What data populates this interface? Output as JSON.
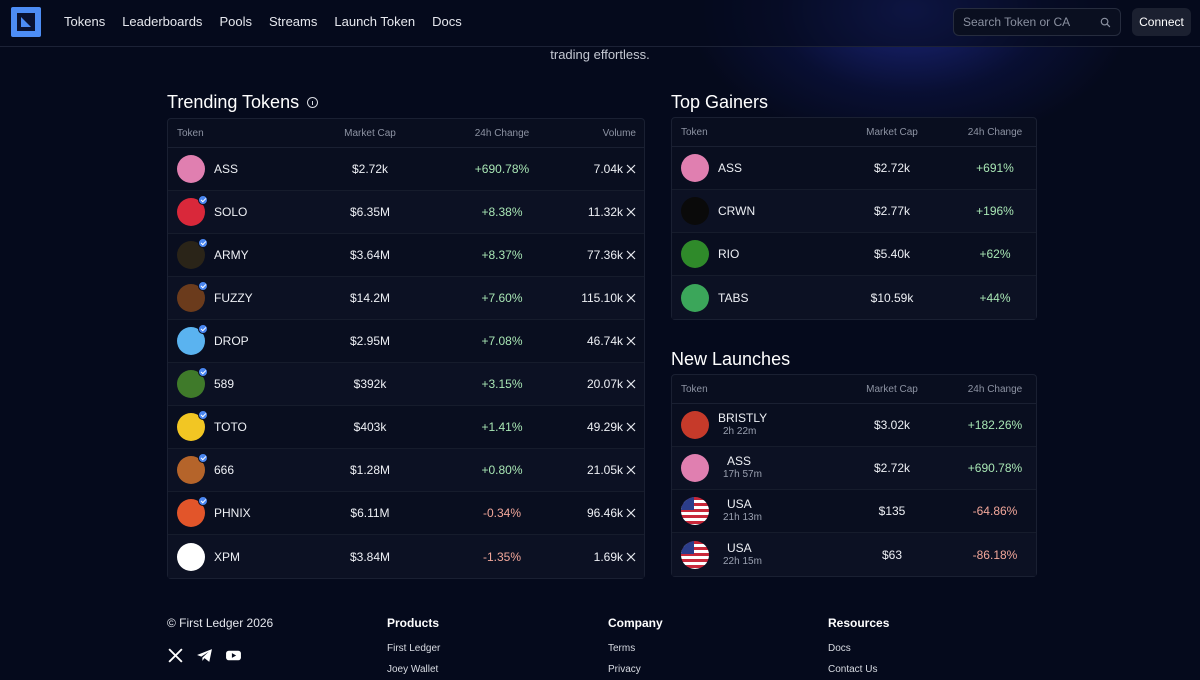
{
  "nav": {
    "links": [
      "Tokens",
      "Leaderboards",
      "Pools",
      "Streams",
      "Launch Token",
      "Docs"
    ],
    "search_placeholder": "Search Token or CA",
    "connect_label": "Connect"
  },
  "hero": {
    "subline": "trading effortless."
  },
  "trending": {
    "title": "Trending Tokens",
    "headers": [
      "Token",
      "Market Cap",
      "24h Change",
      "Volume"
    ],
    "rows": [
      {
        "symbol": "ASS",
        "mcap": "$2.72k",
        "change": "+690.78%",
        "volume": "7.04k",
        "verified": false,
        "color": "#e07fb0"
      },
      {
        "symbol": "SOLO",
        "mcap": "$6.35M",
        "change": "+8.38%",
        "volume": "11.32k",
        "verified": true,
        "color": "#d9283a"
      },
      {
        "symbol": "ARMY",
        "mcap": "$3.64M",
        "change": "+8.37%",
        "volume": "77.36k",
        "verified": true,
        "color": "#2a2418"
      },
      {
        "symbol": "FUZZY",
        "mcap": "$14.2M",
        "change": "+7.60%",
        "volume": "115.10k",
        "verified": true,
        "color": "#6b3b1c"
      },
      {
        "symbol": "DROP",
        "mcap": "$2.95M",
        "change": "+7.08%",
        "volume": "46.74k",
        "verified": true,
        "color": "#5ab3f0"
      },
      {
        "symbol": "589",
        "mcap": "$392k",
        "change": "+3.15%",
        "volume": "20.07k",
        "verified": true,
        "color": "#3f7a2a"
      },
      {
        "symbol": "TOTO",
        "mcap": "$403k",
        "change": "+1.41%",
        "volume": "49.29k",
        "verified": true,
        "color": "#f2c623"
      },
      {
        "symbol": "666",
        "mcap": "$1.28M",
        "change": "+0.80%",
        "volume": "21.05k",
        "verified": true,
        "color": "#b5642a"
      },
      {
        "symbol": "PHNIX",
        "mcap": "$6.11M",
        "change": "-0.34%",
        "volume": "96.46k",
        "verified": true,
        "color": "#e2552a"
      },
      {
        "symbol": "XPM",
        "mcap": "$3.84M",
        "change": "-1.35%",
        "volume": "1.69k",
        "verified": false,
        "color": "#ffffff"
      }
    ]
  },
  "gainers": {
    "title": "Top Gainers",
    "headers": [
      "Token",
      "Market Cap",
      "24h Change"
    ],
    "rows": [
      {
        "symbol": "ASS",
        "mcap": "$2.72k",
        "change": "+691%",
        "color": "#e07fb0"
      },
      {
        "symbol": "CRWN",
        "mcap": "$2.77k",
        "change": "+196%",
        "color": "#0a0a0a"
      },
      {
        "symbol": "RIO",
        "mcap": "$5.40k",
        "change": "+62%",
        "color": "#2f8a2a"
      },
      {
        "symbol": "TABS",
        "mcap": "$10.59k",
        "change": "+44%",
        "color": "#3ba65a"
      }
    ]
  },
  "launches": {
    "title": "New Launches",
    "headers": [
      "Token",
      "Market Cap",
      "24h Change"
    ],
    "rows": [
      {
        "symbol": "BRISTLY",
        "age": "2h 22m",
        "mcap": "$3.02k",
        "change": "+182.26%",
        "color": "#c63a2a"
      },
      {
        "symbol": "ASS",
        "age": "17h 57m",
        "mcap": "$2.72k",
        "change": "+690.78%",
        "color": "#e07fb0"
      },
      {
        "symbol": "USA",
        "age": "21h 13m",
        "mcap": "$135",
        "change": "-64.86%",
        "color": "flag"
      },
      {
        "symbol": "USA",
        "age": "22h 15m",
        "mcap": "$63",
        "change": "-86.18%",
        "color": "flag"
      }
    ]
  },
  "footer": {
    "copyright": "© First Ledger 2026",
    "products": {
      "title": "Products",
      "links": [
        "First Ledger",
        "Joey Wallet"
      ]
    },
    "company": {
      "title": "Company",
      "links": [
        "Terms",
        "Privacy"
      ]
    },
    "resources": {
      "title": "Resources",
      "links": [
        "Docs",
        "Contact Us"
      ]
    },
    "socials": [
      "x-icon",
      "telegram-icon",
      "youtube-icon"
    ]
  }
}
